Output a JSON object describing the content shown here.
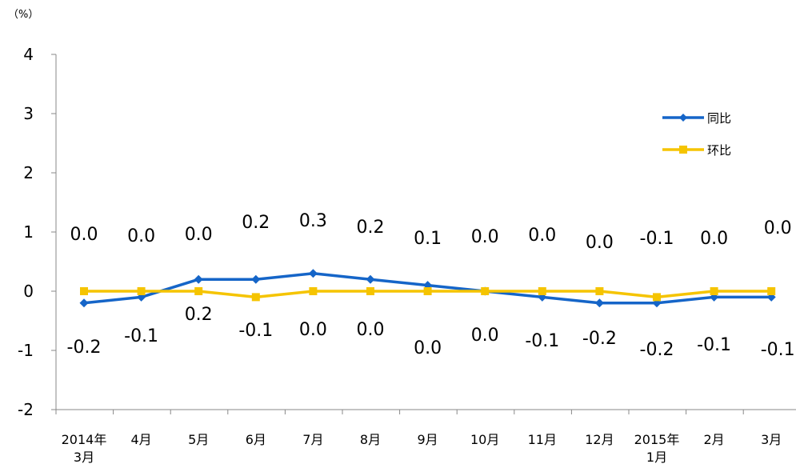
{
  "chart_data": {
    "type": "line",
    "y_unit_label": "（%）",
    "categories": [
      [
        "2014年",
        "3月"
      ],
      [
        "4月"
      ],
      [
        "5月"
      ],
      [
        "6月"
      ],
      [
        "7月"
      ],
      [
        "8月"
      ],
      [
        "9月"
      ],
      [
        "10月"
      ],
      [
        "11月"
      ],
      [
        "12月"
      ],
      [
        "2015年",
        "1月"
      ],
      [
        "2月"
      ],
      [
        "3月"
      ]
    ],
    "ylim": [
      -2,
      4
    ],
    "yticks": [
      "-2",
      "-1",
      "0",
      "1",
      "2",
      "3",
      "4"
    ],
    "grid": false,
    "legend_position": "top-right",
    "series": [
      {
        "name": "同比",
        "color": "#1565c8",
        "marker": "diamond",
        "values": [
          -0.2,
          -0.1,
          0.2,
          0.2,
          0.3,
          0.2,
          0.1,
          0.0,
          -0.1,
          -0.2,
          -0.2,
          -0.1,
          -0.1
        ],
        "labels": [
          "-0.2",
          "-0.1",
          "0.2",
          "0.2",
          "0.3",
          "0.2",
          "0.1",
          "0.0",
          "-0.1",
          "-0.2",
          "-0.2",
          "-0.1",
          "-0.1"
        ]
      },
      {
        "name": "环比",
        "color": "#f5c400",
        "marker": "square",
        "values": [
          0.0,
          0.0,
          0.0,
          -0.1,
          0.0,
          0.0,
          0.0,
          0.0,
          0.0,
          0.0,
          -0.1,
          0.0,
          0.0
        ],
        "labels": [
          "0.0",
          "0.0",
          "0.0",
          "-0.1",
          "0.0",
          "0.0",
          "0.0",
          "0.0",
          "0.0",
          "0.0",
          "-0.1",
          "0.0",
          "0.0"
        ]
      }
    ]
  }
}
